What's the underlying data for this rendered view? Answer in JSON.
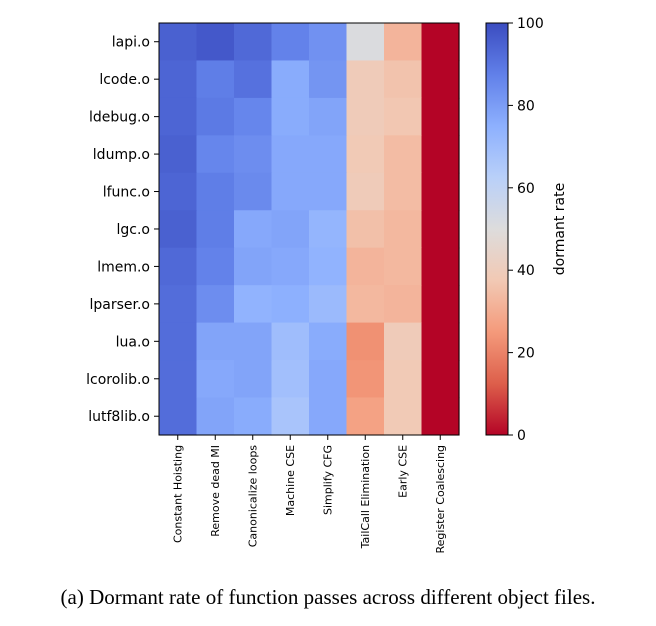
{
  "chart_data": {
    "type": "heatmap",
    "rows": [
      "lapi.o",
      "lcode.o",
      "ldebug.o",
      "ldump.o",
      "lfunc.o",
      "lgc.o",
      "lmem.o",
      "lparser.o",
      "lua.o",
      "lcorolib.o",
      "lutf8lib.o"
    ],
    "columns": [
      "Constant Hoisting",
      "Remove dead MI",
      "Canonicalize loops",
      "Machine CSE",
      "Simplify CFG",
      "TailCall Elimination",
      "Early CSE",
      "Register Coalescing"
    ],
    "values": [
      [
        95,
        97,
        93,
        87,
        83,
        51,
        32,
        0
      ],
      [
        94,
        88,
        91,
        76,
        82,
        39,
        36,
        0
      ],
      [
        94,
        89,
        86,
        76,
        78,
        39,
        37,
        0
      ],
      [
        95,
        86,
        84,
        77,
        77,
        38,
        34,
        0
      ],
      [
        94,
        88,
        85,
        77,
        77,
        39,
        34,
        0
      ],
      [
        95,
        88,
        77,
        78,
        73,
        35,
        33,
        0
      ],
      [
        93,
        87,
        78,
        77,
        74,
        32,
        33,
        0
      ],
      [
        92,
        84,
        74,
        75,
        71,
        33,
        32,
        0
      ],
      [
        92,
        78,
        78,
        70,
        76,
        23,
        39,
        0
      ],
      [
        92,
        77,
        78,
        69,
        77,
        24,
        38,
        0
      ],
      [
        92,
        78,
        76,
        67,
        77,
        27,
        38,
        0
      ]
    ],
    "colorbar": {
      "label": "dormant rate",
      "min": 0,
      "max": 100,
      "ticks": [
        0,
        20,
        40,
        60,
        80,
        100
      ],
      "colormap": "coolwarm (reversed)",
      "color_high": "#3b4cc0",
      "color_mid": "#dddddd",
      "color_low": "#b40426"
    }
  },
  "caption": "(a) Dormant rate of function passes across different object files."
}
